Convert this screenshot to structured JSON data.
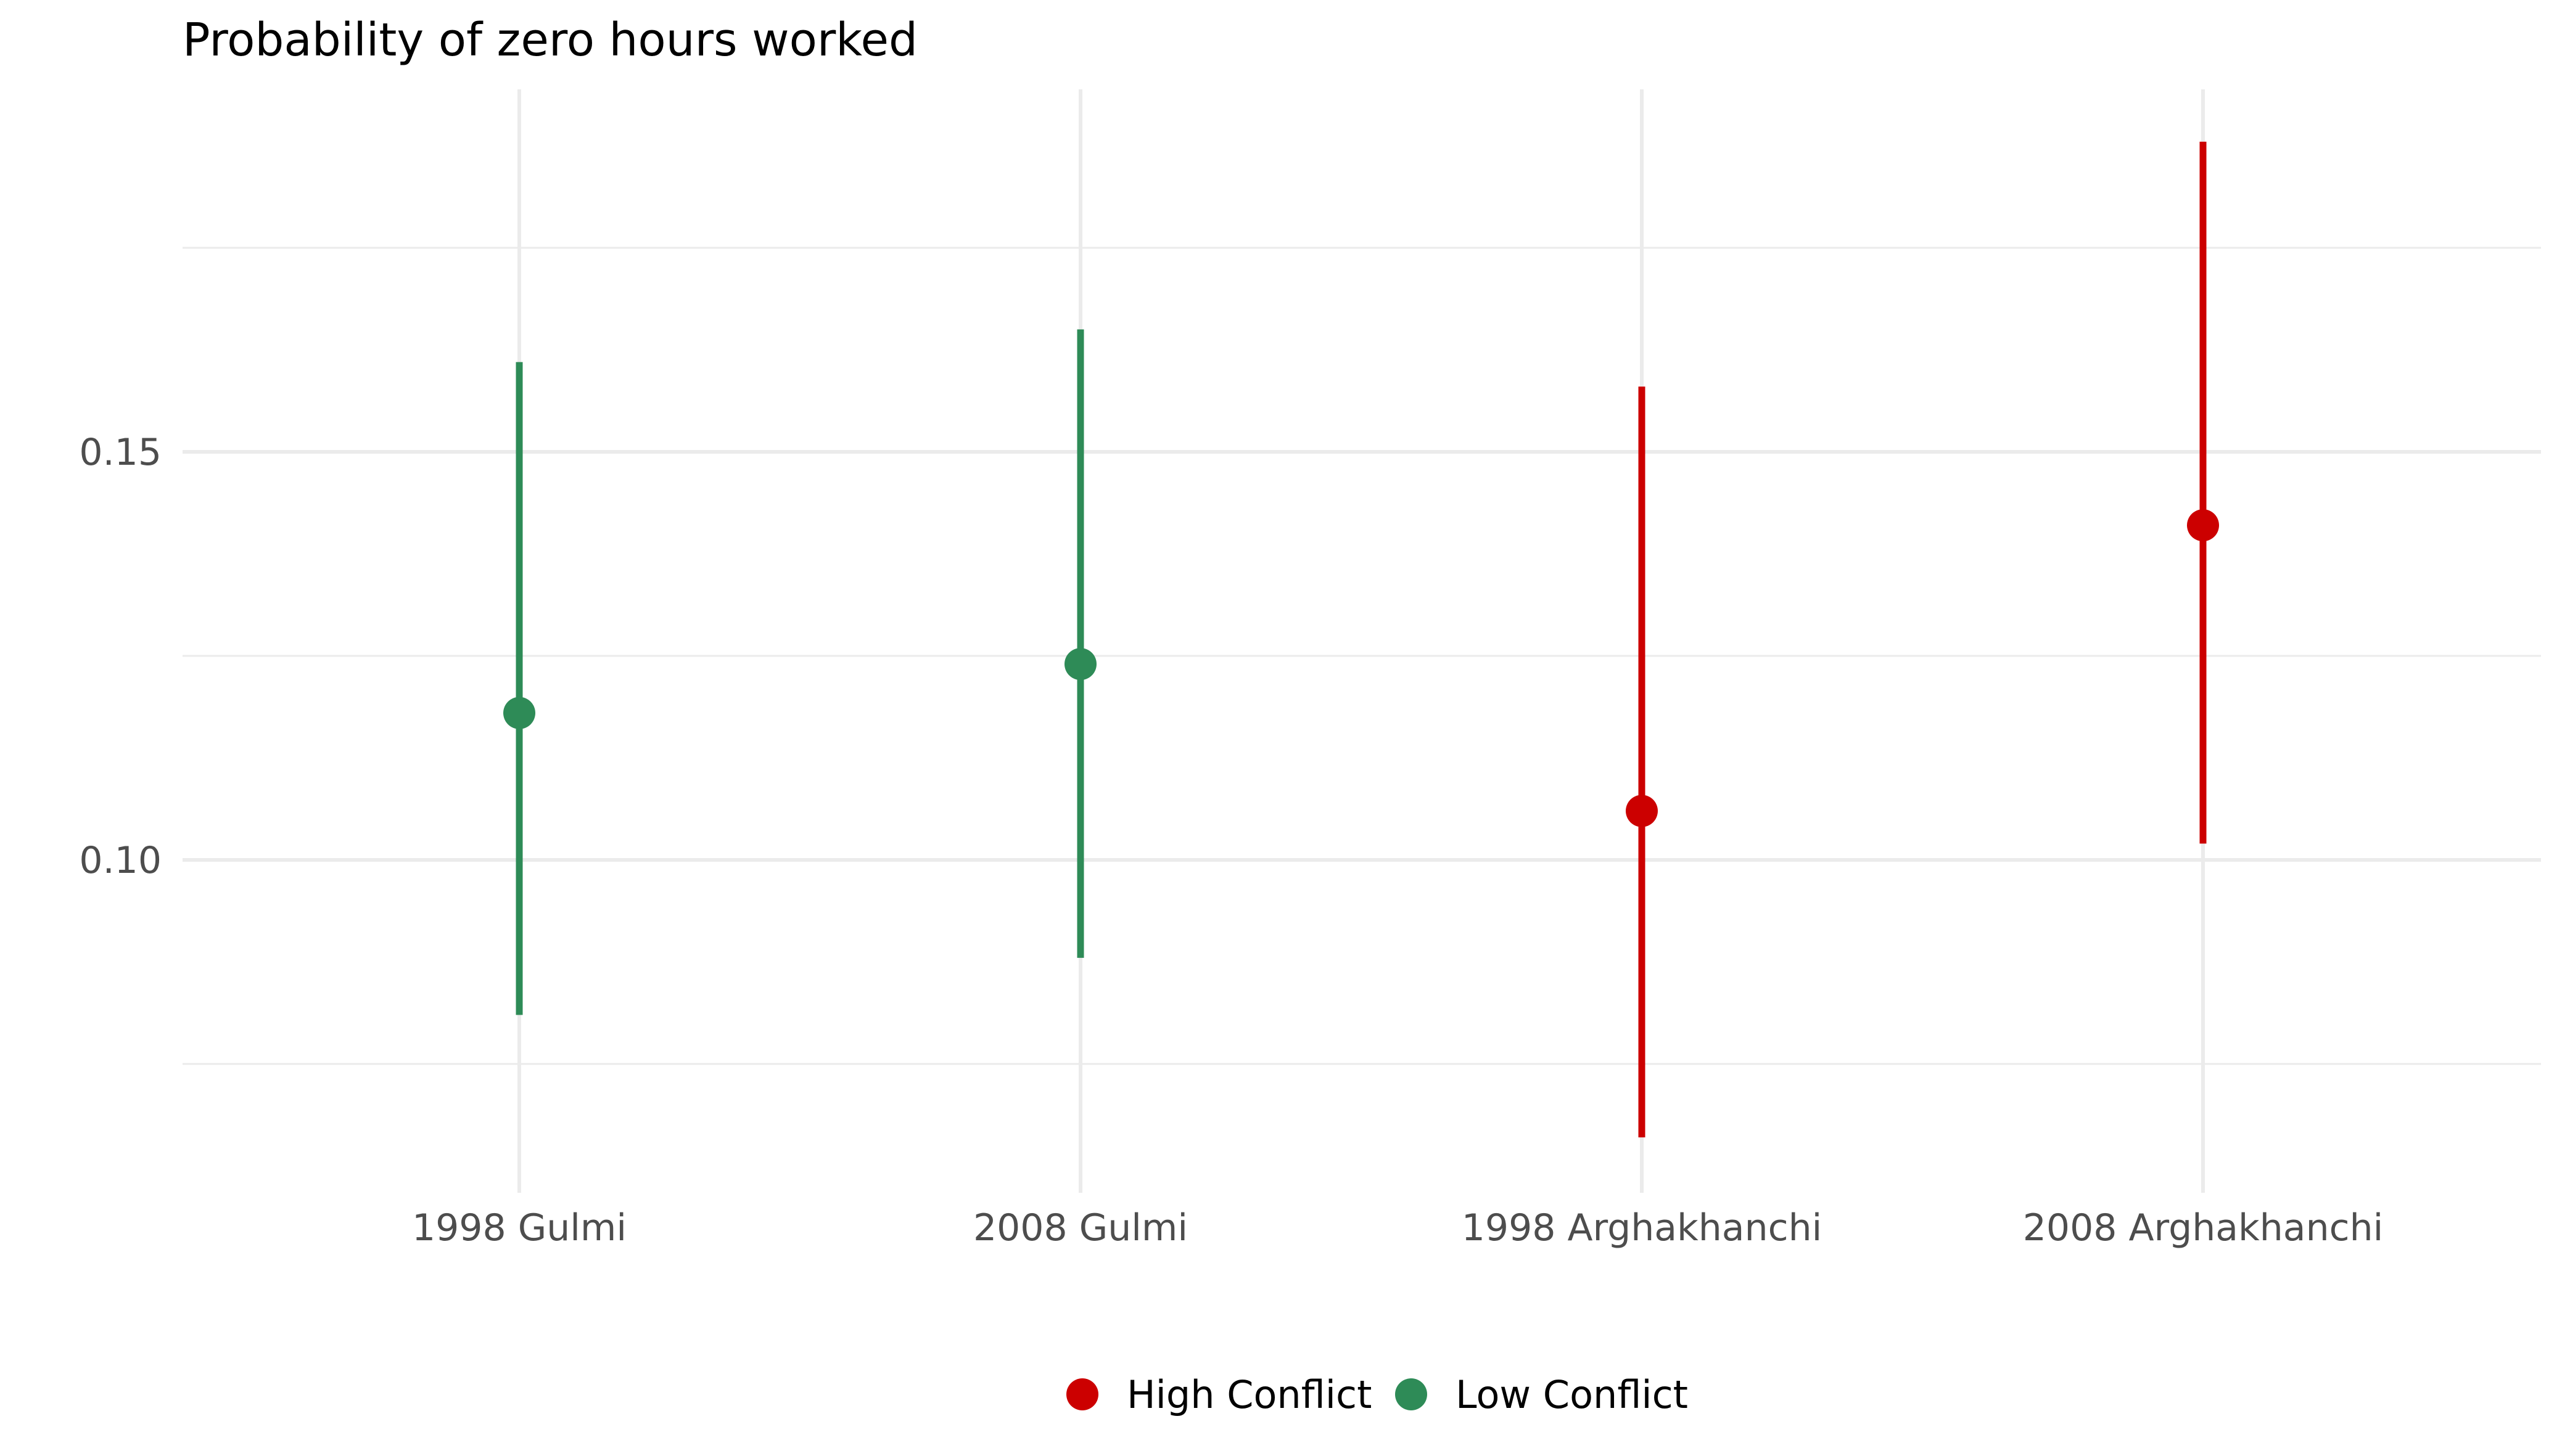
{
  "chart_data": {
    "type": "scatter",
    "title": "Probability of zero hours worked",
    "xlabel": "",
    "ylabel": "",
    "categories": [
      "1998 Gulmi",
      "2008 Gulmi",
      "1998 Arghakhanchi",
      "2008 Arghakhanchi"
    ],
    "ylim": [
      0.064,
      0.192
    ],
    "y_ticks": [
      0.1,
      0.15
    ],
    "y_tick_labels": [
      "0.10",
      "0.15"
    ],
    "y_minor_gridlines": [
      0.075,
      0.125,
      0.175
    ],
    "grid": true,
    "legend_position": "bottom",
    "series": [
      {
        "name": "High Conflict",
        "color": "#cc0000",
        "points": [
          {
            "category": "1998 Arghakhanchi",
            "estimate": 0.106,
            "lower": 0.066,
            "upper": 0.158
          },
          {
            "category": "2008 Arghakhanchi",
            "estimate": 0.141,
            "lower": 0.102,
            "upper": 0.188
          }
        ]
      },
      {
        "name": "Low Conflict",
        "color": "#2e8b57",
        "points": [
          {
            "category": "1998 Gulmi",
            "estimate": 0.118,
            "lower": 0.081,
            "upper": 0.161
          },
          {
            "category": "2008 Gulmi",
            "estimate": 0.124,
            "lower": 0.088,
            "upper": 0.165
          }
        ]
      }
    ]
  }
}
